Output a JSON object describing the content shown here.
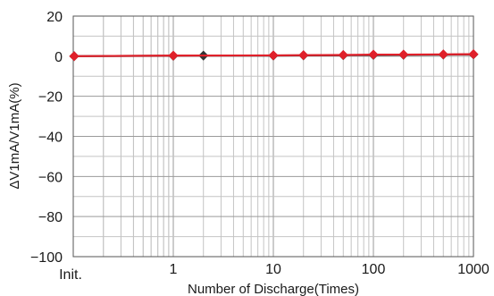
{
  "chart_data": {
    "type": "line",
    "title": "",
    "xlabel": "Number of Discharge(Times)",
    "ylabel": "ΔV1mA/V1mA(%)",
    "x_scale": "log",
    "x_init_label": "Init.",
    "xlim": [
      0.1,
      1000
    ],
    "ylim": [
      -100,
      20
    ],
    "x_ticks": [
      {
        "value": 1,
        "label": "1"
      },
      {
        "value": 10,
        "label": "10"
      },
      {
        "value": 100,
        "label": "100"
      },
      {
        "value": 1000,
        "label": "1000"
      }
    ],
    "y_ticks": [
      {
        "value": 20,
        "label": "20"
      },
      {
        "value": 0,
        "label": "0"
      },
      {
        "value": -20,
        "label": "−20"
      },
      {
        "value": -40,
        "label": "−40"
      },
      {
        "value": -60,
        "label": "−60"
      },
      {
        "value": -80,
        "label": "−80"
      },
      {
        "value": -100,
        "label": "−100"
      }
    ],
    "grid": true,
    "series": [
      {
        "color": "#e0202a",
        "marker": "diamond",
        "points": [
          {
            "x": "Init.",
            "y": 0
          },
          {
            "x": 1,
            "y": 0.3
          },
          {
            "x": 10,
            "y": 0.4
          },
          {
            "x": 20,
            "y": 0.5
          },
          {
            "x": 50,
            "y": 0.6
          },
          {
            "x": 100,
            "y": 0.8
          },
          {
            "x": 200,
            "y": 0.8
          },
          {
            "x": 500,
            "y": 0.9
          },
          {
            "x": 1000,
            "y": 1.0
          }
        ]
      },
      {
        "color": "#333333",
        "marker": "diamond",
        "points": [
          {
            "x": "Init.",
            "y": 0
          },
          {
            "x": 1,
            "y": 0.2
          },
          {
            "x": 2,
            "y": 0.3
          },
          {
            "x": 10,
            "y": 0.3
          },
          {
            "x": 20,
            "y": 0.4
          },
          {
            "x": 50,
            "y": 0.5
          },
          {
            "x": 100,
            "y": 0.6
          },
          {
            "x": 200,
            "y": 0.7
          },
          {
            "x": 500,
            "y": 0.8
          },
          {
            "x": 1000,
            "y": 0.9
          }
        ]
      }
    ]
  }
}
